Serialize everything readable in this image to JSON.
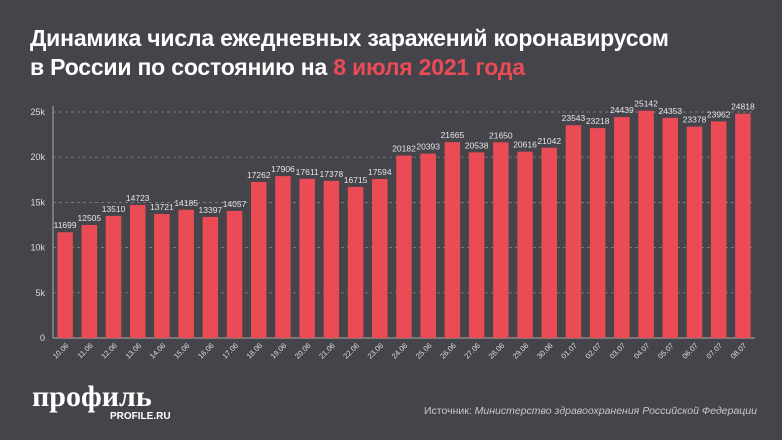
{
  "title": {
    "line1": "Динамика числа ежедневных заражений коронавирусом",
    "line2_prefix": "в России по состоянию на ",
    "line2_accent": "8 июля 2021 года"
  },
  "colors": {
    "background": "#45444a",
    "bar": "#ea4b55",
    "accent": "#ea4b55"
  },
  "logo": {
    "name": "профиль",
    "site": "PROFILE.RU"
  },
  "source": {
    "label": "Источник:",
    "value": "Министерство здравоохранения Российской Федерации"
  },
  "chart_data": {
    "type": "bar",
    "categories": [
      "10.06",
      "11.06",
      "12.06",
      "13.06",
      "14.06",
      "15.06",
      "16.06",
      "17.06",
      "18.06",
      "19.06",
      "20.06",
      "21.06",
      "22.06",
      "23.06",
      "24.06",
      "25.06",
      "26.06",
      "27.06",
      "28.06",
      "29.06",
      "30.06",
      "01.07",
      "02.07",
      "03.07",
      "04.07",
      "05.07",
      "06.07",
      "07.07",
      "08.07"
    ],
    "values": [
      11699,
      12505,
      13510,
      14723,
      13721,
      14185,
      13397,
      14057,
      17262,
      17906,
      17611,
      17378,
      16715,
      17594,
      20182,
      20393,
      21665,
      20538,
      21650,
      20616,
      21042,
      23543,
      23218,
      24439,
      25142,
      24353,
      23378,
      23962,
      24818
    ],
    "ylim": [
      0,
      25000
    ],
    "yticks": [
      0,
      5000,
      10000,
      15000,
      20000,
      25000
    ],
    "ytick_labels": [
      "0",
      "5k",
      "10k",
      "15k",
      "20k",
      "25k"
    ],
    "grid": true,
    "data_labels": true
  }
}
